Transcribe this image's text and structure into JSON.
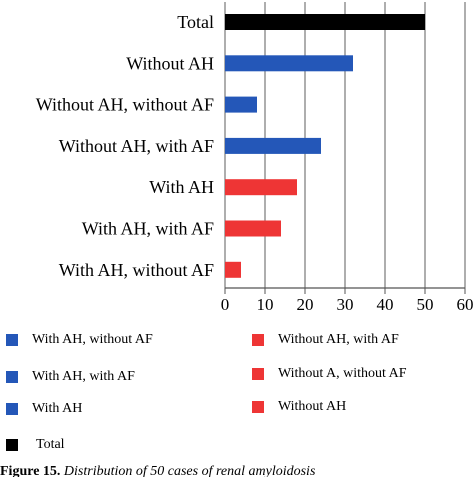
{
  "chart_data": {
    "type": "bar",
    "orientation": "horizontal",
    "categories": [
      "Total",
      "Without AH",
      "Without AH, without AF",
      "Without AH, with AF",
      "With AH",
      "With AH, with AF",
      "With AH, without AF"
    ],
    "values": [
      50,
      32,
      8,
      24,
      18,
      14,
      4
    ],
    "bar_colors": [
      "#000000",
      "#2457b8",
      "#2457b8",
      "#2457b8",
      "#ee3535",
      "#ee3535",
      "#ee3535"
    ],
    "xlim": [
      0,
      60
    ],
    "xticks": [
      "0",
      "10",
      "20",
      "30",
      "40",
      "50",
      "60"
    ],
    "grid": true,
    "legend": {
      "position": "bottom",
      "items": [
        {
          "label": "With AH, without AF",
          "color": "#2457b8"
        },
        {
          "label": "With AH, with AF",
          "color": "#2457b8"
        },
        {
          "label": "With AH",
          "color": "#2457b8"
        },
        {
          "label": "Total",
          "color": "#000000"
        },
        {
          "label": "Without AH, with AF",
          "color": "#ee3535"
        },
        {
          "label": "Without A, without AF",
          "color": "#ee3535"
        },
        {
          "label": "Without AH",
          "color": "#ee3535"
        }
      ]
    }
  },
  "caption": {
    "label": "Figure 15.",
    "text": "Distribution of 50 cases of renal amyloidosis"
  }
}
